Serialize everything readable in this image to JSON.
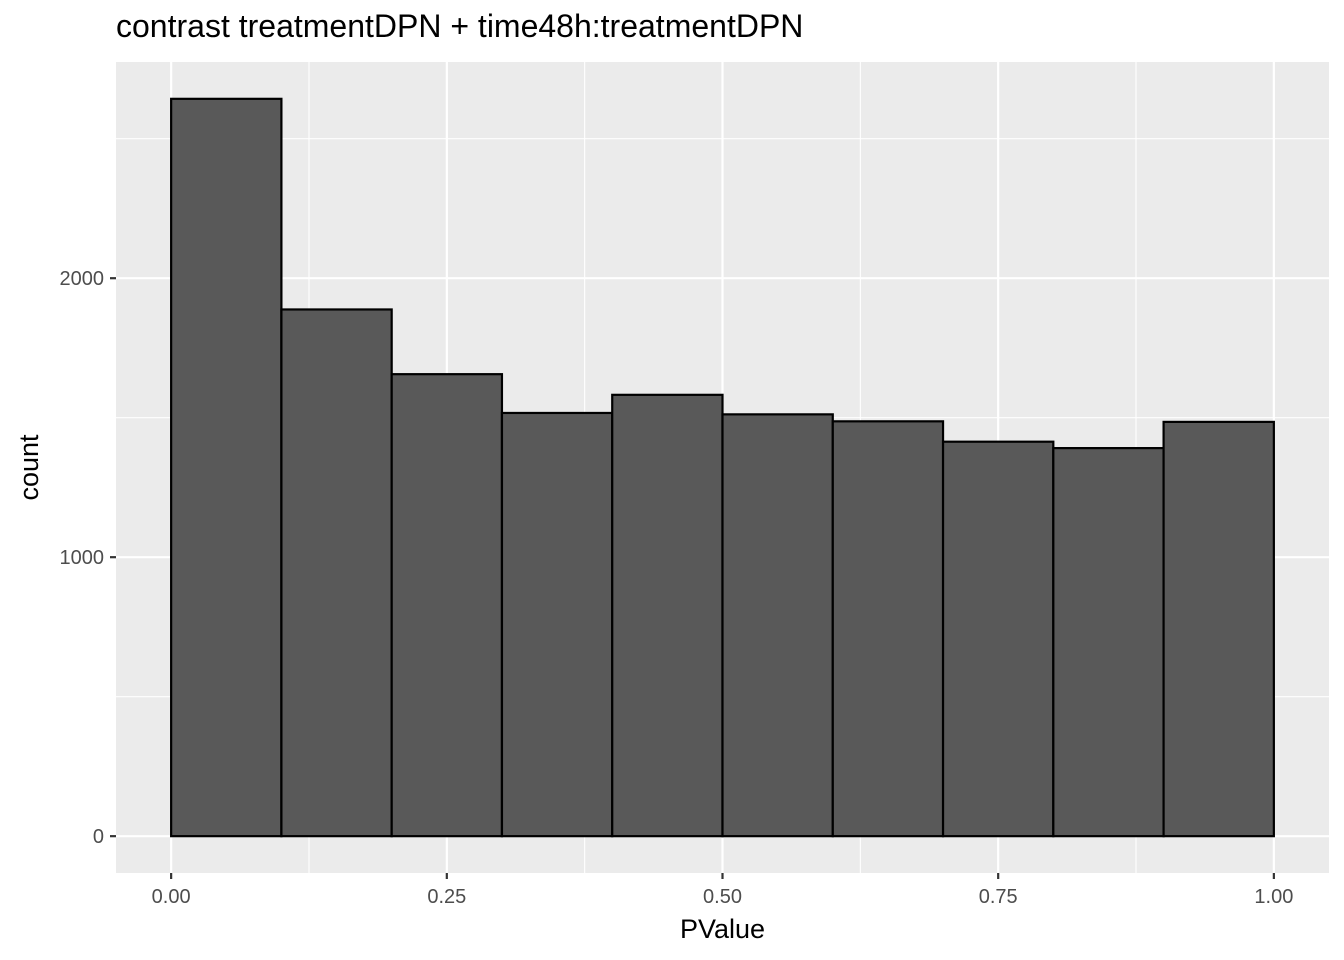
{
  "chart_data": {
    "type": "bar",
    "title": "contrast treatmentDPN + time48h:treatmentDPN",
    "xlabel": "PValue",
    "ylabel": "count",
    "bins": [
      {
        "x0": 0.0,
        "x1": 0.1,
        "count": 2643
      },
      {
        "x0": 0.1,
        "x1": 0.2,
        "count": 1888
      },
      {
        "x0": 0.2,
        "x1": 0.3,
        "count": 1656
      },
      {
        "x0": 0.3,
        "x1": 0.4,
        "count": 1517
      },
      {
        "x0": 0.4,
        "x1": 0.5,
        "count": 1582
      },
      {
        "x0": 0.5,
        "x1": 0.6,
        "count": 1512
      },
      {
        "x0": 0.6,
        "x1": 0.7,
        "count": 1487
      },
      {
        "x0": 0.7,
        "x1": 0.8,
        "count": 1414
      },
      {
        "x0": 0.8,
        "x1": 0.9,
        "count": 1391
      },
      {
        "x0": 0.9,
        "x1": 1.0,
        "count": 1485
      }
    ],
    "xlim": [
      -0.05,
      1.05
    ],
    "ylim": [
      -132,
      2775
    ],
    "x_ticks": [
      0.0,
      0.25,
      0.5,
      0.75,
      1.0
    ],
    "x_tick_labels": [
      "0.00",
      "0.25",
      "0.50",
      "0.75",
      "1.00"
    ],
    "y_ticks": [
      0,
      1000,
      2000
    ],
    "y_tick_labels": [
      "0",
      "1000",
      "2000"
    ],
    "grid": true,
    "colors": {
      "panel_background": "#ebebeb",
      "grid_major": "#ffffff",
      "bar_fill": "#595959",
      "bar_outline": "#000000",
      "tick_text": "#4d4d4d",
      "tick_mark": "#333333"
    }
  }
}
